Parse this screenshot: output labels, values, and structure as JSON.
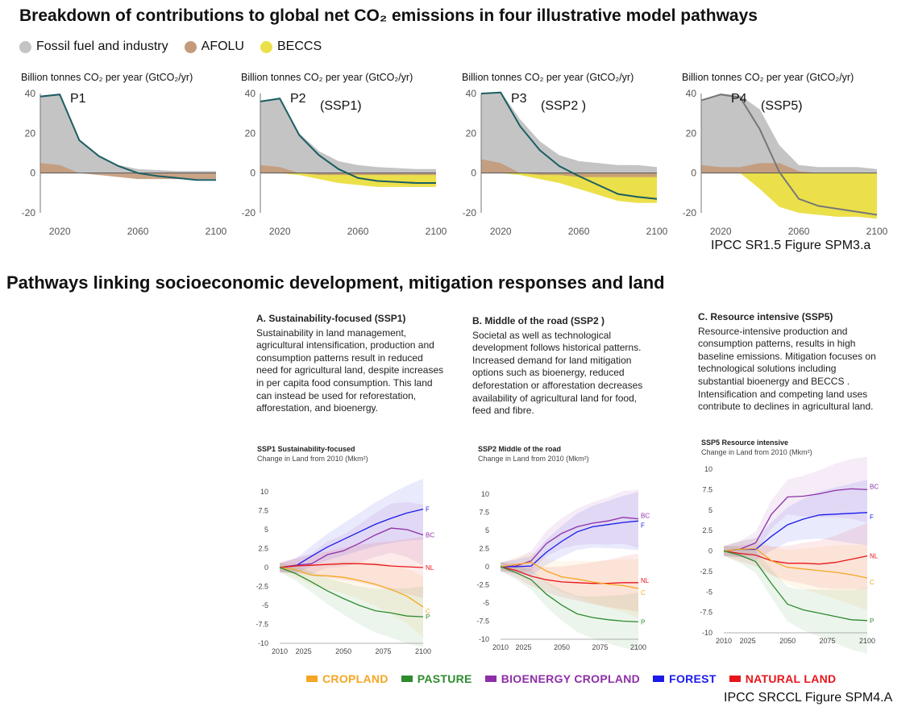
{
  "header": {
    "title": "Breakdown of contributions to global net CO₂ emissions in four illustrative model pathways",
    "legend": [
      {
        "label": "Fossil fuel and industry",
        "color": "#c4c4c4"
      },
      {
        "label": "AFOLU",
        "color": "#c49a7a"
      },
      {
        "label": "BECCS",
        "color": "#ebe04a"
      }
    ]
  },
  "credits": {
    "top": "IPCC SR1.5 Figure SPM3.a",
    "bottom": "IPCC SRCCL Figure SPM4.A"
  },
  "section2": {
    "title": "Pathways linking socioeconomic development, mitigation responses and land"
  },
  "panels_text": [
    {
      "heading": "A. Sustainability-focused (SSP1)",
      "body": "Sustainability in land management, agricultural intensification, production and consumption patterns result in reduced need for agricultural land, despite increases in per capita food consumption. This land can instead be used for reforestation, afforestation, and bioenergy."
    },
    {
      "heading": "B. Middle of the road (SSP2 )",
      "body": "Societal as well as technological development follows historical patterns. Increased demand for land mitigation options such as bioenergy, reduced deforestation or afforestation decreases availability of agricultural land for food, feed and fibre."
    },
    {
      "heading": "C. Resource intensive (SSP5)",
      "body": "Resource-intensive production and consumption patterns, results in high baseline emissions. Mitigation focuses on technological solutions including substantial bioenergy and BECCS . Intensification and competing land uses contribute to declines in agricultural land."
    }
  ],
  "land_legend": [
    {
      "label": "CROPLAND",
      "color": "#f5a623"
    },
    {
      "label": "PASTURE",
      "color": "#2e8b2e"
    },
    {
      "label": "BIOENERGY CROPLAND",
      "color": "#8e2fa8"
    },
    {
      "label": "FOREST",
      "color": "#1a1aeb"
    },
    {
      "label": "NATURAL LAND",
      "color": "#e8151b"
    }
  ],
  "chart_data": [
    {
      "type": "area",
      "name": "P1",
      "annotation": "",
      "ylabel": "Billion tonnes CO₂ per year (GtCO₂/yr)",
      "ylim": [
        -20,
        40
      ],
      "yticks": [
        40,
        20,
        0,
        -20
      ],
      "xlim": [
        2010,
        2100
      ],
      "xticks": [
        2020,
        2060,
        2100
      ],
      "x": [
        2010,
        2020,
        2030,
        2040,
        2050,
        2060,
        2070,
        2080,
        2090,
        2100
      ],
      "fossil": [
        39,
        40,
        17,
        9,
        4,
        2,
        1.5,
        1,
        1,
        1
      ],
      "afolu": [
        5,
        4,
        0,
        -1,
        -2,
        -3,
        -3,
        -3,
        -3,
        -3
      ],
      "beccs": [
        0,
        0,
        0,
        0,
        0,
        0,
        0,
        0,
        0,
        0
      ],
      "net": [
        38.5,
        39.5,
        16.5,
        8.5,
        3.5,
        0,
        -1.5,
        -2.5,
        -3.5,
        -3.5
      ]
    },
    {
      "type": "area",
      "name": "P2",
      "annotation": "(SSP1)",
      "ylabel": "Billion tonnes CO₂ per year (GtCO₂/yr)",
      "ylim": [
        -20,
        40
      ],
      "yticks": [
        40,
        20,
        0,
        -20
      ],
      "xlim": [
        2010,
        2100
      ],
      "xticks": [
        2020,
        2060,
        2100
      ],
      "x": [
        2010,
        2020,
        2030,
        2040,
        2050,
        2060,
        2070,
        2080,
        2090,
        2100
      ],
      "fossil": [
        36,
        38,
        20,
        11,
        6,
        4,
        3,
        2.5,
        2,
        2
      ],
      "afolu": [
        4,
        3,
        0,
        -1,
        -1,
        -1,
        -1,
        -1,
        -1,
        -1
      ],
      "beccs": [
        0,
        0,
        -1,
        -3,
        -5,
        -6,
        -7,
        -7,
        -7,
        -7
      ],
      "net": [
        36,
        37.5,
        19,
        9,
        2,
        -2.5,
        -4,
        -4.5,
        -5,
        -5
      ]
    },
    {
      "type": "area",
      "name": "P3",
      "annotation": "(SSP2 )",
      "ylabel": "Billion tonnes CO₂ per year (GtCO₂/yr)",
      "ylim": [
        -20,
        40
      ],
      "yticks": [
        40,
        20,
        0,
        -20
      ],
      "xlim": [
        2010,
        2100
      ],
      "xticks": [
        2020,
        2060,
        2100
      ],
      "x": [
        2010,
        2020,
        2030,
        2040,
        2050,
        2060,
        2070,
        2080,
        2090,
        2100
      ],
      "fossil": [
        40,
        41,
        27,
        16,
        9,
        6,
        5,
        4,
        4,
        3
      ],
      "afolu": [
        7,
        5,
        0,
        -1,
        -1,
        -2,
        -2,
        -2,
        -2,
        -2
      ],
      "beccs": [
        0,
        0,
        -1,
        -3,
        -5,
        -8,
        -11,
        -14,
        -15,
        -15
      ],
      "net": [
        40,
        40.5,
        23.5,
        11.5,
        3.5,
        -1.5,
        -6,
        -10.5,
        -12,
        -13
      ]
    },
    {
      "type": "area",
      "name": "P4",
      "annotation": "(SSP5)",
      "ylabel": "Billion tonnes CO₂ per year (GtCO₂/yr)",
      "ylim": [
        -20,
        40
      ],
      "yticks": [
        40,
        20,
        0,
        -20
      ],
      "xlim": [
        2010,
        2100
      ],
      "xticks": [
        2020,
        2060,
        2100
      ],
      "x": [
        2010,
        2020,
        2030,
        2040,
        2050,
        2060,
        2070,
        2080,
        2090,
        2100
      ],
      "fossil": [
        37,
        40,
        39,
        32,
        14,
        4,
        3,
        3,
        3,
        2
      ],
      "afolu": [
        4,
        3,
        3,
        5,
        5,
        1,
        0,
        0,
        0,
        0
      ],
      "beccs": [
        0,
        0,
        0,
        -8,
        -17,
        -20,
        -21,
        -22,
        -22,
        -23
      ],
      "net": [
        36.5,
        39.5,
        38,
        22,
        0.5,
        -13,
        -16.5,
        -18,
        -19.5,
        -21
      ]
    },
    {
      "type": "line",
      "title": "SSP1 Sustainability-focused",
      "ylabel": "Change in Land from 2010 (Mkm²)",
      "ylim": [
        -10,
        10
      ],
      "yticks": [
        10,
        7.5,
        5,
        2.5,
        0,
        -2.5,
        -5,
        -7.5,
        -10
      ],
      "xlim": [
        2010,
        2100
      ],
      "xticks": [
        2010,
        2025,
        2050,
        2075,
        2100
      ],
      "x": [
        2010,
        2020,
        2030,
        2040,
        2050,
        2060,
        2070,
        2080,
        2090,
        2100
      ],
      "series": [
        {
          "name": "F",
          "key": "forest",
          "values": [
            0,
            0.2,
            1.5,
            2.7,
            3.7,
            4.7,
            5.7,
            6.5,
            7.2,
            7.7
          ]
        },
        {
          "name": "BC",
          "key": "bioenergy",
          "values": [
            0,
            0.3,
            0.5,
            1.7,
            2.2,
            3.2,
            4.3,
            5.2,
            5.0,
            4.3
          ]
        },
        {
          "name": "NL",
          "key": "natural",
          "values": [
            0,
            0.2,
            0.3,
            0.4,
            0.5,
            0.5,
            0.4,
            0.2,
            0.1,
            0
          ]
        },
        {
          "name": "C",
          "key": "cropland",
          "values": [
            0,
            -0.3,
            -1.0,
            -1.1,
            -1.3,
            -1.7,
            -2.2,
            -2.9,
            -3.8,
            -5.2
          ]
        },
        {
          "name": "P",
          "key": "pasture",
          "values": [
            0,
            -0.8,
            -1.9,
            -3.1,
            -4.1,
            -5.0,
            -5.7,
            -6.0,
            -6.4,
            -6.5
          ]
        }
      ]
    },
    {
      "type": "line",
      "title": "SSP2 Middle of the road",
      "ylabel": "Change in Land from 2010 (Mkm²)",
      "ylim": [
        -10,
        10
      ],
      "yticks": [
        10,
        7.5,
        5,
        2.5,
        0,
        -2.5,
        -5,
        -7.5,
        -10
      ],
      "xlim": [
        2010,
        2100
      ],
      "xticks": [
        2010,
        2025,
        2050,
        2075,
        2100
      ],
      "x": [
        2010,
        2020,
        2030,
        2040,
        2050,
        2060,
        2070,
        2080,
        2090,
        2100
      ],
      "series": [
        {
          "name": "BC",
          "key": "bioenergy",
          "values": [
            0,
            0.1,
            0.8,
            3.2,
            4.6,
            5.5,
            6.0,
            6.3,
            6.8,
            6.6
          ]
        },
        {
          "name": "F",
          "key": "forest",
          "values": [
            0,
            0,
            0.1,
            2.0,
            3.5,
            4.8,
            5.5,
            5.8,
            6.1,
            6.3
          ]
        },
        {
          "name": "NL",
          "key": "natural",
          "values": [
            0,
            -0.5,
            -1.3,
            -1.8,
            -2.1,
            -2.2,
            -2.3,
            -2.3,
            -2.2,
            -2.2
          ]
        },
        {
          "name": "C",
          "key": "cropland",
          "values": [
            0,
            0.3,
            0.6,
            -0.6,
            -1.4,
            -1.7,
            -2.1,
            -2.4,
            -2.6,
            -3.0
          ]
        },
        {
          "name": "P",
          "key": "pasture",
          "values": [
            0,
            -0.8,
            -1.8,
            -3.8,
            -5.3,
            -6.5,
            -7.0,
            -7.3,
            -7.5,
            -7.6
          ]
        }
      ]
    },
    {
      "type": "line",
      "title": "SSP5 Resource intensive",
      "ylabel": "Change in Land from 2010 (Mkm²)",
      "ylim": [
        -10,
        10
      ],
      "yticks": [
        10,
        7.5,
        5,
        2.5,
        0,
        -2.5,
        -5,
        -7.5,
        -10
      ],
      "xlim": [
        2010,
        2100
      ],
      "xticks": [
        2010,
        2025,
        2050,
        2075,
        2100
      ],
      "x": [
        2010,
        2020,
        2030,
        2040,
        2050,
        2060,
        2070,
        2080,
        2090,
        2100
      ],
      "series": [
        {
          "name": "BC",
          "key": "bioenergy",
          "values": [
            0,
            0.2,
            1.0,
            4.5,
            6.6,
            6.7,
            7.0,
            7.4,
            7.6,
            7.5
          ]
        },
        {
          "name": "F",
          "key": "forest",
          "values": [
            0,
            0.2,
            0.2,
            1.8,
            3.2,
            3.9,
            4.4,
            4.5,
            4.6,
            4.7
          ]
        },
        {
          "name": "NL",
          "key": "natural",
          "values": [
            0,
            -0.3,
            -0.5,
            -1.2,
            -1.5,
            -1.5,
            -1.6,
            -1.4,
            -1.0,
            -0.6
          ]
        },
        {
          "name": "C",
          "key": "cropland",
          "values": [
            0,
            0.2,
            0.3,
            -1.2,
            -2.0,
            -2.2,
            -2.4,
            -2.6,
            -2.9,
            -3.3
          ]
        },
        {
          "name": "P",
          "key": "pasture",
          "values": [
            0,
            -0.5,
            -1.3,
            -4.0,
            -6.5,
            -7.2,
            -7.6,
            -8.0,
            -8.4,
            -8.5
          ]
        }
      ]
    }
  ]
}
